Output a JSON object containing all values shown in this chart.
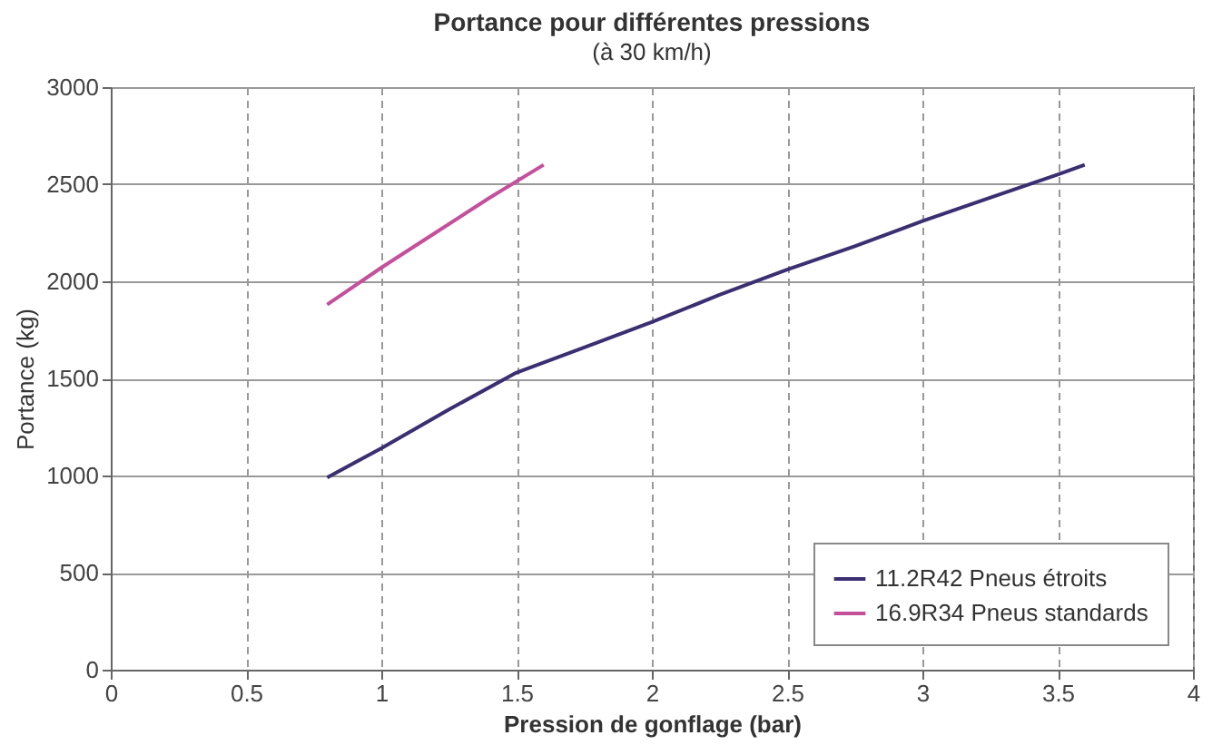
{
  "chart_data": {
    "type": "line",
    "title": "Portance pour différentes pressions",
    "subtitle": "(à 30 km/h)",
    "xlabel": "Pression de gonflage (bar)",
    "ylabel": "Portance (kg)",
    "xlim": [
      0,
      4
    ],
    "xticks": [
      0,
      0.5,
      1,
      1.5,
      2,
      2.5,
      3,
      3.5,
      4
    ],
    "ylim": [
      0,
      3000
    ],
    "yticks": [
      0,
      500,
      1000,
      1500,
      2000,
      2500,
      3000
    ],
    "grid": true,
    "legend": "bottom right",
    "series": [
      {
        "name": "11.2R42 Pneus étroits",
        "color": "#3b2f72",
        "x": [
          0.8,
          1,
          1.25,
          1.5,
          1.75,
          2,
          2.25,
          2.5,
          2.75,
          3,
          3.25,
          3.5,
          3.6
        ],
        "values": [
          990,
          1140,
          1340,
          1530,
          1660,
          1790,
          1930,
          2060,
          2180,
          2310,
          2430,
          2550,
          2600
        ]
      },
      {
        "name": "16.9R34 Pneus standards",
        "color": "#c4509c",
        "x": [
          0.8,
          1,
          1.2,
          1.4,
          1.6
        ],
        "values": [
          1880,
          2070,
          2250,
          2430,
          2600
        ]
      }
    ]
  }
}
